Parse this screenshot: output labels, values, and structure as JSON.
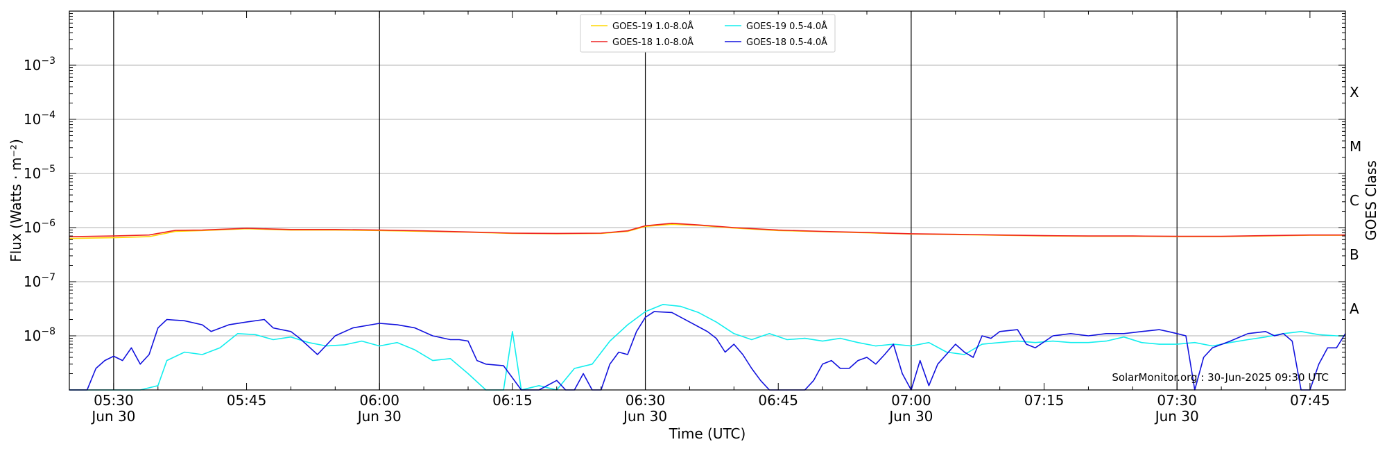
{
  "chart_data": {
    "type": "line",
    "xlabel": "Time (UTC)",
    "ylabel": "Flux (Watts · m⁻²)",
    "ylabel_right": "GOES Class",
    "credit": "SolarMonitor.org : 30-Jun-2025 09:30 UTC",
    "y_scale": "log",
    "ylim": [
      1e-09,
      0.01
    ],
    "xlim": [
      "05:25",
      "07:49"
    ],
    "grid": "horizontal at decades; vertical black lines every 30 min",
    "legend_position": "top-center",
    "x_ticks": [
      {
        "time": "05:30",
        "line1": "05:30",
        "line2": "Jun 30"
      },
      {
        "time": "05:45",
        "line1": "05:45",
        "line2": ""
      },
      {
        "time": "06:00",
        "line1": "06:00",
        "line2": "Jun 30"
      },
      {
        "time": "06:15",
        "line1": "06:15",
        "line2": ""
      },
      {
        "time": "06:30",
        "line1": "06:30",
        "line2": "Jun 30"
      },
      {
        "time": "06:45",
        "line1": "06:45",
        "line2": ""
      },
      {
        "time": "07:00",
        "line1": "07:00",
        "line2": "Jun 30"
      },
      {
        "time": "07:15",
        "line1": "07:15",
        "line2": ""
      },
      {
        "time": "07:30",
        "line1": "07:30",
        "line2": "Jun 30"
      },
      {
        "time": "07:45",
        "line1": "07:45",
        "line2": ""
      }
    ],
    "vertical_lines": [
      "05:30",
      "06:00",
      "06:30",
      "07:00",
      "07:30"
    ],
    "y_ticks": [
      {
        "value": 0.001,
        "base": "10",
        "exp": "−3"
      },
      {
        "value": 0.0001,
        "base": "10",
        "exp": "−4"
      },
      {
        "value": 1e-05,
        "base": "10",
        "exp": "−5"
      },
      {
        "value": 1e-06,
        "base": "10",
        "exp": "−6"
      },
      {
        "value": 1e-07,
        "base": "10",
        "exp": "−7"
      },
      {
        "value": 1e-08,
        "base": "10",
        "exp": "−8"
      }
    ],
    "gridlines": [
      0.001,
      0.0001,
      1e-05,
      1e-06,
      1e-07,
      1e-08
    ],
    "goes_classes": [
      {
        "label": "X",
        "value": 0.000316
      },
      {
        "label": "M",
        "value": 3.16e-05
      },
      {
        "label": "C",
        "value": 3.16e-06
      },
      {
        "label": "B",
        "value": 3.16e-07
      },
      {
        "label": "A",
        "value": 3.16e-08
      }
    ],
    "series": [
      {
        "name": "GOES-19 1.0-8.0Å",
        "color": "#ffd700",
        "x": [
          "05:25",
          "05:30",
          "05:34",
          "05:37",
          "05:40",
          "05:45",
          "05:50",
          "05:55",
          "06:00",
          "06:05",
          "06:10",
          "06:15",
          "06:20",
          "06:25",
          "06:28",
          "06:30",
          "06:33",
          "06:36",
          "06:40",
          "06:45",
          "06:50",
          "06:55",
          "07:00",
          "07:05",
          "07:10",
          "07:15",
          "07:20",
          "07:25",
          "07:30",
          "07:35",
          "07:40",
          "07:45",
          "07:49"
        ],
        "y": [
          6.3e-07,
          6.5e-07,
          6.8e-07,
          8.5e-07,
          8.8e-07,
          9.5e-07,
          9e-07,
          9e-07,
          8.8e-07,
          8.5e-07,
          8.2e-07,
          7.8e-07,
          7.7e-07,
          7.8e-07,
          8.5e-07,
          1.05e-06,
          1.15e-06,
          1.1e-06,
          9.8e-07,
          8.8e-07,
          8.4e-07,
          8e-07,
          7.6e-07,
          7.4e-07,
          7.2e-07,
          7e-07,
          6.9e-07,
          6.9e-07,
          6.8e-07,
          6.8e-07,
          7e-07,
          7.2e-07,
          7.2e-07
        ]
      },
      {
        "name": "GOES-18 1.0-8.0Å",
        "color": "#ee2222",
        "x": [
          "05:25",
          "05:30",
          "05:34",
          "05:37",
          "05:40",
          "05:45",
          "05:50",
          "05:55",
          "06:00",
          "06:05",
          "06:10",
          "06:15",
          "06:20",
          "06:25",
          "06:28",
          "06:30",
          "06:33",
          "06:36",
          "06:40",
          "06:45",
          "06:50",
          "06:55",
          "07:00",
          "07:05",
          "07:10",
          "07:15",
          "07:20",
          "07:25",
          "07:30",
          "07:35",
          "07:40",
          "07:45",
          "07:49"
        ],
        "y": [
          6.8e-07,
          7e-07,
          7.3e-07,
          8.9e-07,
          9e-07,
          9.7e-07,
          9.2e-07,
          9.2e-07,
          9e-07,
          8.7e-07,
          8.3e-07,
          7.9e-07,
          7.8e-07,
          7.9e-07,
          8.7e-07,
          1.08e-06,
          1.2e-06,
          1.12e-06,
          1e-06,
          9e-07,
          8.5e-07,
          8.1e-07,
          7.7e-07,
          7.5e-07,
          7.3e-07,
          7.1e-07,
          7e-07,
          7e-07,
          6.9e-07,
          6.9e-07,
          7.1e-07,
          7.3e-07,
          7.3e-07
        ]
      },
      {
        "name": "GOES-19 0.5-4.0Å",
        "color": "#11eeee",
        "x": [
          "05:25",
          "05:30",
          "05:33",
          "05:35",
          "05:36",
          "05:38",
          "05:40",
          "05:42",
          "05:44",
          "05:46",
          "05:48",
          "05:50",
          "05:52",
          "05:54",
          "05:56",
          "05:58",
          "06:00",
          "06:02",
          "06:04",
          "06:06",
          "06:08",
          "06:10",
          "06:12",
          "06:14",
          "06:15",
          "06:16",
          "06:18",
          "06:20",
          "06:22",
          "06:24",
          "06:26",
          "06:28",
          "06:30",
          "06:32",
          "06:34",
          "06:36",
          "06:38",
          "06:40",
          "06:42",
          "06:44",
          "06:46",
          "06:48",
          "06:50",
          "06:52",
          "06:54",
          "06:56",
          "06:58",
          "07:00",
          "07:02",
          "07:04",
          "07:06",
          "07:08",
          "07:10",
          "07:12",
          "07:14",
          "07:16",
          "07:18",
          "07:20",
          "07:22",
          "07:24",
          "07:26",
          "07:28",
          "07:30",
          "07:32",
          "07:34",
          "07:36",
          "07:38",
          "07:40",
          "07:42",
          "07:44",
          "07:46",
          "07:48",
          "07:49"
        ],
        "y": [
          1e-09,
          1e-09,
          1e-09,
          1.2e-09,
          3.5e-09,
          5e-09,
          4.5e-09,
          6e-09,
          1.1e-08,
          1.05e-08,
          8.5e-09,
          9.5e-09,
          7.5e-09,
          6.5e-09,
          6.8e-09,
          8e-09,
          6.5e-09,
          7.5e-09,
          5.5e-09,
          3.5e-09,
          3.8e-09,
          2e-09,
          1e-09,
          1e-09,
          1.2e-08,
          1e-09,
          1.2e-09,
          1e-09,
          2.5e-09,
          3e-09,
          8e-09,
          1.6e-08,
          2.8e-08,
          3.8e-08,
          3.5e-08,
          2.7e-08,
          1.8e-08,
          1.1e-08,
          8.5e-09,
          1.1e-08,
          8.5e-09,
          9e-09,
          8e-09,
          9e-09,
          7.5e-09,
          6.5e-09,
          7e-09,
          6.5e-09,
          7.5e-09,
          5e-09,
          4.5e-09,
          7e-09,
          7.5e-09,
          8e-09,
          7.5e-09,
          8e-09,
          7.5e-09,
          7.5e-09,
          8e-09,
          9.5e-09,
          7.5e-09,
          7e-09,
          7e-09,
          7.5e-09,
          6.5e-09,
          7.5e-09,
          8.5e-09,
          9.5e-09,
          1.1e-08,
          1.2e-08,
          1.05e-08,
          1e-08,
          1e-08
        ]
      },
      {
        "name": "GOES-18 0.5-4.0Å",
        "color": "#1111dd",
        "x": [
          "05:25",
          "05:27",
          "05:28",
          "05:29",
          "05:30",
          "05:31",
          "05:32",
          "05:33",
          "05:34",
          "05:35",
          "05:36",
          "05:38",
          "05:40",
          "05:41",
          "05:43",
          "05:45",
          "05:47",
          "05:48",
          "05:50",
          "05:51",
          "05:53",
          "05:55",
          "05:57",
          "06:00",
          "06:02",
          "06:04",
          "06:06",
          "06:08",
          "06:09",
          "06:10",
          "06:11",
          "06:12",
          "06:14",
          "06:16",
          "06:17",
          "06:18",
          "06:20",
          "06:21",
          "06:22",
          "06:23",
          "06:24",
          "06:25",
          "06:26",
          "06:27",
          "06:28",
          "06:29",
          "06:30",
          "06:31",
          "06:33",
          "06:35",
          "06:37",
          "06:38",
          "06:39",
          "06:40",
          "06:41",
          "06:42",
          "06:43",
          "06:44",
          "06:46",
          "06:48",
          "06:49",
          "06:50",
          "06:51",
          "06:52",
          "06:53",
          "06:54",
          "06:55",
          "06:56",
          "06:57",
          "06:58",
          "06:59",
          "07:00",
          "07:01",
          "07:02",
          "07:03",
          "07:05",
          "07:06",
          "07:07",
          "07:08",
          "07:09",
          "07:10",
          "07:12",
          "07:13",
          "07:14",
          "07:16",
          "07:18",
          "07:20",
          "07:22",
          "07:24",
          "07:26",
          "07:28",
          "07:29",
          "07:30",
          "07:31",
          "07:32",
          "07:33",
          "07:34",
          "07:36",
          "07:38",
          "07:40",
          "07:41",
          "07:42",
          "07:43",
          "07:44",
          "07:45",
          "07:46",
          "07:47",
          "07:48",
          "07:49"
        ],
        "y": [
          1e-09,
          1e-09,
          2.5e-09,
          3.5e-09,
          4.2e-09,
          3.5e-09,
          6e-09,
          3e-09,
          4.5e-09,
          1.4e-08,
          2e-08,
          1.9e-08,
          1.6e-08,
          1.2e-08,
          1.6e-08,
          1.8e-08,
          2e-08,
          1.4e-08,
          1.2e-08,
          9e-09,
          4.5e-09,
          1e-08,
          1.4e-08,
          1.7e-08,
          1.6e-08,
          1.4e-08,
          1e-08,
          8.5e-09,
          8.5e-09,
          8e-09,
          3.5e-09,
          3e-09,
          2.8e-09,
          1e-09,
          1e-09,
          1e-09,
          1.5e-09,
          1e-09,
          1e-09,
          2e-09,
          1e-09,
          1e-09,
          3e-09,
          5e-09,
          4.5e-09,
          1.2e-08,
          2.2e-08,
          2.8e-08,
          2.7e-08,
          1.8e-08,
          1.2e-08,
          9e-09,
          5e-09,
          7e-09,
          4.5e-09,
          2.5e-09,
          1.5e-09,
          1e-09,
          1e-09,
          1e-09,
          1.5e-09,
          3e-09,
          3.5e-09,
          2.5e-09,
          2.5e-09,
          3.5e-09,
          4e-09,
          3e-09,
          4.5e-09,
          7e-09,
          2e-09,
          1e-09,
          3.5e-09,
          1.2e-09,
          3e-09,
          7e-09,
          5e-09,
          4e-09,
          1e-08,
          9e-09,
          1.2e-08,
          1.3e-08,
          7e-09,
          6e-09,
          1e-08,
          1.1e-08,
          1e-08,
          1.1e-08,
          1.1e-08,
          1.2e-08,
          1.3e-08,
          1.2e-08,
          1.1e-08,
          1e-08,
          1e-09,
          4e-09,
          6e-09,
          8e-09,
          1.1e-08,
          1.2e-08,
          1e-08,
          1.1e-08,
          8e-09,
          1e-09,
          1e-09,
          3e-09,
          6e-09,
          6e-09,
          1.1e-08
        ]
      }
    ]
  }
}
